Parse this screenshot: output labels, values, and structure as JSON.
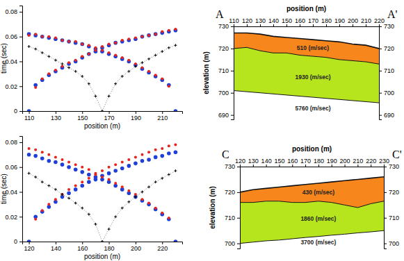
{
  "chart_data": [
    {
      "type": "scatter",
      "x_label": "position (m)",
      "y_label": "time (sec)",
      "x": [
        110,
        115,
        120,
        125,
        130,
        135,
        140,
        145,
        150,
        155,
        160,
        165,
        170,
        175,
        180,
        185,
        190,
        195,
        200,
        205,
        210,
        215,
        220
      ],
      "series": [
        {
          "color": "#1f3fd6",
          "marker": "circle",
          "values": [
            0,
            0.021,
            0.025,
            0.029,
            0.032,
            0.035,
            0.038,
            0.04,
            0.043,
            0.046,
            0.048,
            0.051,
            0.053,
            0.055,
            0.056,
            0.057,
            0.058,
            0.06,
            0.061,
            0.062,
            0.063,
            0.064,
            0.065
          ]
        },
        {
          "color": "#1f3fd6",
          "marker": "circle",
          "values": [
            0.062,
            0.061,
            0.06,
            0.059,
            0.058,
            0.057,
            0.056,
            0.055,
            0.054,
            0.052,
            0.05,
            0.048,
            0.046,
            0.044,
            0.042,
            0.04,
            0.037,
            0.034,
            0.031,
            0.028,
            0.025,
            0.021,
            0
          ]
        },
        {
          "color": "#e8231c",
          "marker": "dot",
          "values": [
            null,
            0.019,
            0.026,
            0.03,
            0.033,
            0.036,
            0.039,
            0.041,
            0.044,
            0.046,
            0.049,
            0.052,
            0.054,
            0.055,
            0.057,
            0.058,
            0.059,
            0.06,
            0.061,
            0.062,
            0.064,
            0.065,
            0.066
          ]
        },
        {
          "color": "#e8231c",
          "marker": "dot",
          "values": [
            0.061,
            0.062,
            0.06,
            0.06,
            0.059,
            0.057,
            0.056,
            0.056,
            0.054,
            0.053,
            0.051,
            0.049,
            0.047,
            0.045,
            0.043,
            0.041,
            0.038,
            0.035,
            0.032,
            0.029,
            0.026,
            0.02,
            null
          ]
        },
        {
          "color": "#000000",
          "marker": "cross",
          "line_style": "dotted",
          "values": [
            0.052,
            0.05,
            0.047,
            0.044,
            0.041,
            0.038,
            0.035,
            0.032,
            0.028,
            0.022,
            0.012,
            0,
            0.012,
            0.022,
            0.028,
            0.032,
            0.036,
            0.039,
            0.042,
            0.045,
            0.048,
            0.051,
            0.053
          ]
        }
      ],
      "xlim": [
        105,
        225
      ],
      "ylim": [
        0,
        0.085
      ],
      "xticks": [
        110,
        130,
        150,
        170,
        190,
        210
      ],
      "yticks": [
        0,
        0.02,
        0.04,
        0.06,
        0.08
      ]
    },
    {
      "type": "cross-section",
      "x_label": "position (m)",
      "y_label": "elevation (m)",
      "section_labels": [
        "A",
        "A'"
      ],
      "x": [
        110,
        120,
        130,
        140,
        150,
        160,
        170,
        180,
        190,
        200,
        210,
        220
      ],
      "series": [
        {
          "name": "510 (m/sec)",
          "color": "#f7861c",
          "values": [
            727,
            727,
            726.5,
            725.5,
            725,
            724.5,
            724,
            723.5,
            723,
            722,
            721.5,
            720
          ]
        },
        {
          "name": "1930 (m/sec)",
          "color": "#b6e51d",
          "values": [
            720,
            720.5,
            719,
            718,
            718,
            717,
            716.5,
            716,
            715,
            714.5,
            714,
            713
          ]
        },
        {
          "name": "5760 (m/sec)",
          "color": "#ffffff",
          "values": [
            701,
            700.5,
            700,
            699.5,
            699,
            698.5,
            698,
            697.5,
            697,
            696.5,
            696,
            695.5
          ]
        }
      ],
      "xlim": [
        110,
        220
      ],
      "ylim": [
        688,
        730
      ],
      "xticks": [
        110,
        120,
        130,
        140,
        150,
        160,
        170,
        180,
        190,
        200,
        210,
        220
      ],
      "yticks": [
        690,
        700,
        710,
        720,
        730
      ]
    },
    {
      "type": "scatter",
      "x_label": "position (m)",
      "y_label": "time (sec)",
      "x": [
        120,
        125,
        130,
        135,
        140,
        145,
        150,
        155,
        160,
        165,
        170,
        175,
        180,
        185,
        190,
        195,
        200,
        205,
        210,
        215,
        220,
        225,
        230
      ],
      "series": [
        {
          "color": "#1f3fd6",
          "marker": "circle",
          "values": [
            0,
            0.02,
            0.024,
            0.028,
            0.032,
            0.036,
            0.039,
            0.042,
            0.045,
            0.048,
            0.05,
            0.053,
            0.055,
            0.057,
            0.059,
            0.061,
            0.063,
            0.065,
            0.066,
            0.068,
            0.069,
            0.071,
            0.072
          ]
        },
        {
          "color": "#1f3fd6",
          "marker": "circle",
          "values": [
            0.07,
            0.069,
            0.067,
            0.065,
            0.064,
            0.062,
            0.06,
            0.058,
            0.056,
            0.054,
            0.052,
            0.05,
            0.048,
            0.045,
            0.042,
            0.039,
            0.036,
            0.033,
            0.03,
            0.026,
            0.022,
            0.018,
            0
          ]
        },
        {
          "color": "#e8231c",
          "marker": "dot",
          "values": [
            null,
            0.018,
            0.025,
            0.03,
            0.034,
            0.038,
            0.042,
            0.045,
            0.048,
            0.051,
            0.054,
            0.057,
            0.06,
            0.062,
            0.064,
            0.066,
            0.068,
            0.07,
            0.072,
            0.074,
            0.075,
            0.077,
            0.078
          ]
        },
        {
          "color": "#e8231c",
          "marker": "dot",
          "values": [
            0.075,
            0.074,
            0.072,
            0.07,
            0.068,
            0.066,
            0.064,
            0.062,
            0.06,
            0.058,
            0.055,
            0.052,
            0.05,
            0.047,
            0.044,
            0.041,
            0.038,
            0.034,
            0.031,
            0.027,
            0.023,
            0.019,
            null
          ]
        },
        {
          "color": "#000000",
          "marker": "cross",
          "line_style": "dotted",
          "values": [
            0.055,
            0.052,
            0.048,
            0.045,
            0.042,
            0.038,
            0.035,
            0.031,
            0.027,
            0.022,
            0.014,
            0,
            0.01,
            0.02,
            0.027,
            0.032,
            0.036,
            0.04,
            0.044,
            0.048,
            0.051,
            0.054,
            0.057
          ]
        }
      ],
      "xlim": [
        115,
        235
      ],
      "ylim": [
        0,
        0.085
      ],
      "xticks": [
        120,
        140,
        160,
        180,
        200,
        220
      ],
      "yticks": [
        0,
        0.02,
        0.04,
        0.06,
        0.08
      ]
    },
    {
      "type": "cross-section",
      "x_label": "position (m)",
      "y_label": "elevation (m)",
      "section_labels": [
        "C",
        "C'"
      ],
      "x": [
        120,
        130,
        140,
        150,
        160,
        170,
        180,
        190,
        200,
        210,
        220,
        230
      ],
      "series": [
        {
          "name": "430 (m/sec)",
          "color": "#f7861c",
          "values": [
            720,
            721,
            721.5,
            722,
            722.5,
            723,
            723.5,
            724,
            724.5,
            725,
            725.5,
            726
          ]
        },
        {
          "name": "1860 (m/sec)",
          "color": "#b6e51d",
          "values": [
            716,
            716,
            716.5,
            716.5,
            716,
            716,
            716.5,
            716,
            715,
            714,
            715.5,
            716.5
          ]
        },
        {
          "name": "3700 (m/sec)",
          "color": "#ffffff",
          "values": [
            700,
            700.5,
            701,
            701.3,
            701.8,
            702.3,
            702.7,
            703.2,
            703.6,
            704.1,
            704.5,
            705
          ]
        }
      ],
      "xlim": [
        120,
        230
      ],
      "ylim": [
        698,
        730
      ],
      "xticks": [
        120,
        130,
        140,
        150,
        160,
        170,
        180,
        190,
        200,
        210,
        220,
        230
      ],
      "yticks": [
        700,
        710,
        720,
        730
      ]
    }
  ]
}
